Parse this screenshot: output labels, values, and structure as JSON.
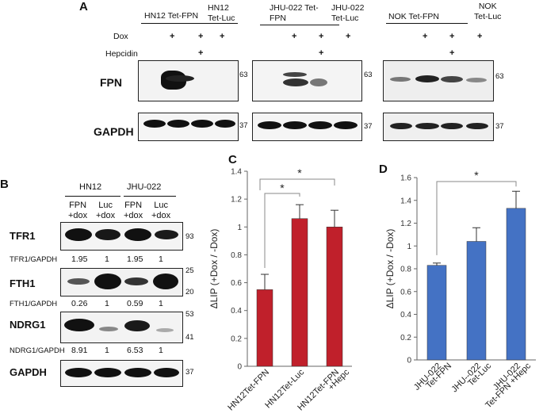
{
  "panels": {
    "a": "A",
    "b": "B",
    "c": "C",
    "d": "D"
  },
  "panel_a": {
    "groups": [
      {
        "tet_fpn": "HN12 Tet-FPN",
        "tet_luc": "HN12\nTet-Luc",
        "mw_fpn": "63",
        "mw_gapdh": "37"
      },
      {
        "tet_fpn": "JHU-022 Tet-\nFPN",
        "tet_luc": "JHU-022\nTet-Luc",
        "mw_fpn": "63",
        "mw_gapdh": "37"
      },
      {
        "tet_fpn": "NOK Tet-FPN",
        "tet_luc": "NOK\nTet-Luc",
        "mw_fpn": "63",
        "mw_gapdh": "37"
      }
    ],
    "row_labels": {
      "dox": "Dox",
      "hepcidin": "Hepcidin",
      "fpn": "FPN",
      "gapdh": "GAPDH"
    },
    "plus": "+"
  },
  "panel_b": {
    "cell_lines": [
      "HN12",
      "JHU-022"
    ],
    "lane_labels": [
      "FPN\n+dox",
      "Luc\n+dox",
      "FPN\n+dox",
      "Luc\n+dox"
    ],
    "rows": [
      {
        "label": "TFR1",
        "ratio_label": "TFR1/GAPDH",
        "ratios": [
          "1.95",
          "1",
          "1.95",
          "1"
        ],
        "markers": [
          "93"
        ]
      },
      {
        "label": "FTH1",
        "ratio_label": "FTH1/GAPDH",
        "ratios": [
          "0.26",
          "1",
          "0.59",
          "1"
        ],
        "markers": [
          "25",
          "20"
        ]
      },
      {
        "label": "NDRG1",
        "ratio_label": "NDRG1/GAPDH",
        "ratios": [
          "8.91",
          "1",
          "6.53",
          "1"
        ],
        "markers": [
          "53",
          "41"
        ]
      },
      {
        "label": "GAPDH",
        "ratio_label": "",
        "ratios": [],
        "markers": [
          "37"
        ]
      }
    ]
  },
  "chart_data": [
    {
      "type": "bar",
      "categories": [
        "HN12Tet-FPN",
        "HN12Tet-Luc",
        "HN12Tet-FPN\n+Hepc"
      ],
      "values": [
        0.55,
        1.06,
        1.0
      ],
      "errors": [
        0.11,
        0.1,
        0.12
      ],
      "ylabel": "ΔLIP (+Dox / -Dox)",
      "ylim": [
        0,
        1.4
      ],
      "yticks": [
        "0",
        "0.2",
        "0.4",
        "0.6",
        "0.8",
        "1",
        "1.2",
        "1.4"
      ],
      "color": "#c0202b",
      "significance": [
        "*",
        "*"
      ],
      "grid": false
    },
    {
      "type": "bar",
      "categories": [
        "JHU-022\nTet-FPN",
        "JHU--022\nTet-Luc",
        "JHU-022\nTet-FPN +Hepc"
      ],
      "values": [
        0.83,
        1.04,
        1.33
      ],
      "errors": [
        0.02,
        0.12,
        0.15
      ],
      "ylabel": "ΔLIP (+Dox / -Dox)",
      "ylim": [
        0,
        1.6
      ],
      "yticks": [
        "0",
        "0.2",
        "0.4",
        "0.6",
        "0.8",
        "1",
        "1.2",
        "1.4",
        "1.6"
      ],
      "color": "#4472c4",
      "significance": [
        "*"
      ],
      "grid": false
    }
  ]
}
